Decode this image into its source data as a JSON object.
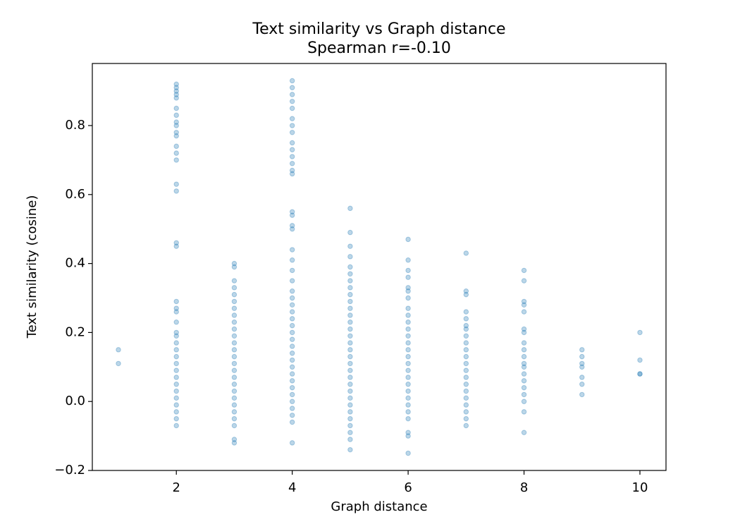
{
  "chart_data": {
    "type": "scatter",
    "title": "Text similarity vs Graph distance",
    "subtitle": "Spearman r=-0.10",
    "x_label": "Graph distance",
    "y_label": "Text similarity (cosine)",
    "color": "#1f77b4",
    "xlim": [
      0.55,
      10.45
    ],
    "ylim": [
      -0.2,
      0.98
    ],
    "xticks": [
      2,
      4,
      6,
      8,
      10
    ],
    "yticks": [
      {
        "value": -0.2,
        "label": "−0.2"
      },
      {
        "value": 0,
        "label": "0.0"
      },
      0.2,
      0.4,
      0.6,
      0.8
    ],
    "x": [
      1,
      1,
      2,
      2,
      2,
      2,
      2,
      2,
      2,
      2,
      2,
      2,
      2,
      2,
      2,
      2,
      2,
      2,
      2,
      2,
      2,
      2,
      2,
      2,
      2,
      2,
      2,
      2,
      2,
      2,
      2,
      2,
      2,
      2,
      2,
      2,
      2,
      2,
      2,
      3,
      3,
      3,
      3,
      3,
      3,
      3,
      3,
      3,
      3,
      3,
      3,
      3,
      3,
      3,
      3,
      3,
      3,
      3,
      3,
      3,
      3,
      3,
      3,
      3,
      3,
      4,
      4,
      4,
      4,
      4,
      4,
      4,
      4,
      4,
      4,
      4,
      4,
      4,
      4,
      4,
      4,
      4,
      4,
      4,
      4,
      4,
      4,
      4,
      4,
      4,
      4,
      4,
      4,
      4,
      4,
      4,
      4,
      4,
      4,
      4,
      4,
      4,
      4,
      4,
      4,
      4,
      4,
      4,
      5,
      5,
      5,
      5,
      5,
      5,
      5,
      5,
      5,
      5,
      5,
      5,
      5,
      5,
      5,
      5,
      5,
      5,
      5,
      5,
      5,
      5,
      5,
      5,
      5,
      5,
      5,
      5,
      5,
      5,
      5,
      6,
      6,
      6,
      6,
      6,
      6,
      6,
      6,
      6,
      6,
      6,
      6,
      6,
      6,
      6,
      6,
      6,
      6,
      6,
      6,
      6,
      6,
      6,
      6,
      6,
      6,
      6,
      7,
      7,
      7,
      7,
      7,
      7,
      7,
      7,
      7,
      7,
      7,
      7,
      7,
      7,
      7,
      7,
      7,
      7,
      7,
      7,
      7,
      8,
      8,
      8,
      8,
      8,
      8,
      8,
      8,
      8,
      8,
      8,
      8,
      8,
      8,
      8,
      8,
      8,
      8,
      8,
      9,
      9,
      9,
      9,
      9,
      9,
      9,
      10,
      10,
      10,
      10
    ],
    "y": [
      0.15,
      0.11,
      0.92,
      0.91,
      0.9,
      0.89,
      0.88,
      0.85,
      0.83,
      0.81,
      0.8,
      0.78,
      0.77,
      0.74,
      0.72,
      0.7,
      0.63,
      0.61,
      0.46,
      0.45,
      0.29,
      0.27,
      0.26,
      0.23,
      0.2,
      0.19,
      0.17,
      0.15,
      0.13,
      0.11,
      0.09,
      0.07,
      0.05,
      0.03,
      0.01,
      -0.01,
      -0.03,
      -0.05,
      -0.07,
      0.4,
      0.39,
      0.35,
      0.33,
      0.31,
      0.29,
      0.27,
      0.25,
      0.23,
      0.21,
      0.19,
      0.17,
      0.15,
      0.13,
      0.11,
      0.09,
      0.07,
      0.05,
      0.03,
      0.01,
      -0.01,
      -0.03,
      -0.05,
      -0.07,
      -0.11,
      -0.12,
      0.93,
      0.91,
      0.89,
      0.87,
      0.85,
      0.82,
      0.8,
      0.78,
      0.75,
      0.73,
      0.71,
      0.69,
      0.67,
      0.66,
      0.55,
      0.54,
      0.51,
      0.5,
      0.44,
      0.41,
      0.38,
      0.35,
      0.32,
      0.3,
      0.28,
      0.26,
      0.24,
      0.22,
      0.2,
      0.18,
      0.16,
      0.14,
      0.12,
      0.1,
      0.08,
      0.06,
      0.04,
      0.02,
      0.0,
      -0.02,
      -0.04,
      -0.06,
      -0.12,
      0.56,
      0.49,
      0.45,
      0.42,
      0.39,
      0.37,
      0.35,
      0.33,
      0.31,
      0.29,
      0.27,
      0.25,
      0.23,
      0.21,
      0.19,
      0.17,
      0.15,
      0.13,
      0.11,
      0.09,
      0.07,
      0.05,
      0.03,
      0.01,
      -0.01,
      -0.03,
      -0.05,
      -0.07,
      -0.09,
      -0.11,
      -0.14,
      0.47,
      0.41,
      0.38,
      0.36,
      0.33,
      0.32,
      0.3,
      0.27,
      0.25,
      0.23,
      0.21,
      0.19,
      0.17,
      0.15,
      0.13,
      0.11,
      0.09,
      0.07,
      0.05,
      0.03,
      0.01,
      -0.01,
      -0.03,
      -0.05,
      -0.09,
      -0.1,
      -0.15,
      0.43,
      0.32,
      0.31,
      0.26,
      0.24,
      0.22,
      0.21,
      0.19,
      0.17,
      0.15,
      0.13,
      0.11,
      0.09,
      0.07,
      0.05,
      0.03,
      0.01,
      -0.01,
      -0.03,
      -0.05,
      -0.07,
      0.38,
      0.35,
      0.29,
      0.28,
      0.26,
      0.21,
      0.2,
      0.17,
      0.15,
      0.13,
      0.11,
      0.1,
      0.08,
      0.06,
      0.04,
      0.02,
      0.0,
      -0.03,
      -0.09,
      0.15,
      0.13,
      0.11,
      0.1,
      0.07,
      0.05,
      0.02,
      0.2,
      0.12,
      0.08,
      0.08
    ]
  }
}
